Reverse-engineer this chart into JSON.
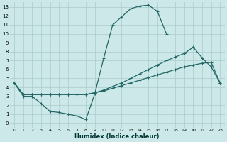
{
  "xlabel": "Humidex (Indice chaleur)",
  "bg_color": "#cce8e8",
  "grid_color": "#aacccc",
  "line_color": "#226666",
  "xlim": [
    -0.5,
    23.5
  ],
  "ylim": [
    -0.5,
    13.5
  ],
  "xticks": [
    0,
    1,
    2,
    3,
    4,
    5,
    6,
    7,
    8,
    9,
    10,
    11,
    12,
    13,
    14,
    15,
    16,
    17,
    18,
    19,
    20,
    21,
    22,
    23
  ],
  "yticks": [
    0,
    1,
    2,
    3,
    4,
    5,
    6,
    7,
    8,
    9,
    10,
    11,
    12,
    13
  ],
  "line1_x": [
    0,
    1,
    2,
    3,
    4,
    5,
    6,
    7,
    8,
    9,
    10,
    11,
    12,
    13,
    14,
    15,
    16,
    17,
    18,
    19,
    20,
    21,
    22,
    23
  ],
  "line1_y": [
    4.5,
    3.0,
    3.0,
    2.2,
    1.3,
    1.2,
    1.0,
    0.8,
    0.4,
    3.3,
    7.3,
    11.0,
    11.9,
    12.8,
    13.1,
    13.2,
    12.5,
    10.0,
    null,
    null,
    null,
    null,
    null,
    null
  ],
  "line2_x": [
    0,
    1,
    2,
    3,
    4,
    5,
    6,
    7,
    8,
    9,
    10,
    11,
    12,
    13,
    14,
    15,
    16,
    17,
    18,
    19,
    20,
    21,
    22,
    23
  ],
  "line2_y": [
    4.5,
    3.2,
    3.2,
    3.2,
    3.2,
    3.2,
    3.2,
    3.2,
    3.2,
    3.4,
    3.7,
    4.1,
    4.5,
    5.0,
    5.5,
    6.0,
    6.5,
    7.0,
    7.4,
    7.8,
    8.5,
    7.3,
    6.3,
    4.5
  ],
  "line3_x": [
    0,
    1,
    2,
    3,
    4,
    5,
    6,
    7,
    8,
    9,
    10,
    11,
    12,
    13,
    14,
    15,
    16,
    17,
    18,
    19,
    20,
    21,
    22,
    23
  ],
  "line3_y": [
    4.5,
    3.2,
    3.2,
    3.2,
    3.2,
    3.2,
    3.2,
    3.2,
    3.2,
    3.4,
    3.6,
    3.9,
    4.2,
    4.5,
    4.8,
    5.1,
    5.4,
    5.7,
    6.0,
    6.3,
    6.5,
    6.7,
    6.8,
    4.5
  ]
}
